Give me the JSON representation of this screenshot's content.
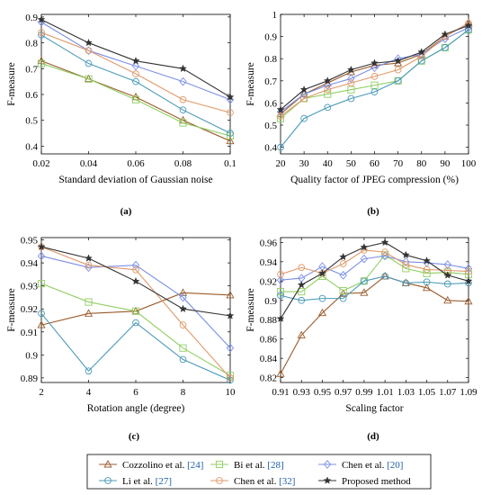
{
  "colors": {
    "cozzolino": "#9a5a2a",
    "bi": "#8fcf62",
    "chen20": "#7b8fe6",
    "li": "#4a9ab8",
    "chen32": "#e0996a",
    "proposed": "#333333",
    "reference": "#1f5fa6"
  },
  "legend": [
    {
      "key": "cozzolino",
      "name": "Cozzolino et al. ",
      "ref": "[24]",
      "marker": "triangle"
    },
    {
      "key": "bi",
      "name": "Bi et al. ",
      "ref": "[28]",
      "marker": "square"
    },
    {
      "key": "chen20",
      "name": "Chen et al. ",
      "ref": "[20]",
      "marker": "diamond"
    },
    {
      "key": "li",
      "name": "Li et al. ",
      "ref": "[27]",
      "marker": "circle"
    },
    {
      "key": "chen32",
      "name": "Chen et al. ",
      "ref": "[32]",
      "marker": "circle"
    },
    {
      "key": "proposed",
      "name": "Proposed method",
      "ref": "",
      "marker": "star"
    }
  ],
  "chart_data": [
    {
      "type": "line",
      "panel": "(a)",
      "xlabel": "Standard deviation of Gaussian noise",
      "ylabel": "F-measure",
      "x": [
        0.02,
        0.04,
        0.06,
        0.08,
        0.1
      ],
      "xticks": [
        "0.02",
        "0.04",
        "0.06",
        "0.08",
        "0.1"
      ],
      "xlim": [
        0.02,
        0.1
      ],
      "yticks": [
        0.4,
        0.5,
        0.6,
        0.7,
        0.8,
        0.9
      ],
      "ylim": [
        0.37,
        0.91
      ],
      "series": [
        {
          "key": "cozzolino",
          "values": [
            0.73,
            0.66,
            0.59,
            0.5,
            0.42
          ]
        },
        {
          "key": "bi",
          "values": [
            0.72,
            0.66,
            0.58,
            0.49,
            0.44
          ]
        },
        {
          "key": "chen20",
          "values": [
            0.88,
            0.77,
            0.71,
            0.65,
            0.58
          ]
        },
        {
          "key": "li",
          "values": [
            0.83,
            0.72,
            0.65,
            0.54,
            0.45
          ]
        },
        {
          "key": "chen32",
          "values": [
            0.84,
            0.77,
            0.68,
            0.58,
            0.53
          ]
        },
        {
          "key": "proposed",
          "values": [
            0.89,
            0.8,
            0.73,
            0.7,
            0.59
          ]
        }
      ]
    },
    {
      "type": "line",
      "panel": "(b)",
      "xlabel": "Quality factor of JPEG compression (%)",
      "ylabel": "F-measure",
      "x": [
        20,
        30,
        40,
        50,
        60,
        70,
        80,
        90,
        100
      ],
      "xticks": [
        "20",
        "30",
        "40",
        "50",
        "60",
        "70",
        "80",
        "90",
        "100"
      ],
      "xlim": [
        20,
        100
      ],
      "yticks": [
        0.4,
        0.5,
        0.6,
        0.7,
        0.8,
        0.9,
        1
      ],
      "ylim": [
        0.37,
        1.0
      ],
      "series": [
        {
          "key": "cozzolino",
          "values": [
            0.55,
            0.64,
            0.69,
            0.74,
            0.77,
            0.78,
            0.82,
            0.9,
            0.96
          ]
        },
        {
          "key": "bi",
          "values": [
            0.53,
            0.62,
            0.64,
            0.66,
            0.68,
            0.7,
            0.79,
            0.85,
            0.93
          ]
        },
        {
          "key": "chen20",
          "values": [
            0.56,
            0.64,
            0.68,
            0.71,
            0.76,
            0.8,
            0.82,
            0.89,
            0.94
          ]
        },
        {
          "key": "li",
          "values": [
            0.4,
            0.53,
            0.58,
            0.62,
            0.65,
            0.7,
            0.79,
            0.85,
            0.93
          ]
        },
        {
          "key": "chen32",
          "values": [
            0.54,
            0.62,
            0.66,
            0.69,
            0.72,
            0.75,
            0.81,
            0.9,
            0.96
          ]
        },
        {
          "key": "proposed",
          "values": [
            0.57,
            0.66,
            0.7,
            0.75,
            0.78,
            0.79,
            0.83,
            0.91,
            0.95
          ]
        }
      ]
    },
    {
      "type": "line",
      "panel": "(c)",
      "xlabel": "Rotation angle (degree)",
      "ylabel": "F-measure",
      "x": [
        2,
        4,
        6,
        8,
        10
      ],
      "xticks": [
        "2",
        "4",
        "6",
        "8",
        "10"
      ],
      "xlim": [
        2,
        10
      ],
      "yticks": [
        0.89,
        0.9,
        0.91,
        0.92,
        0.93,
        0.94,
        0.95
      ],
      "ylim": [
        0.888,
        0.951
      ],
      "series": [
        {
          "key": "cozzolino",
          "values": [
            0.913,
            0.918,
            0.919,
            0.927,
            0.926
          ]
        },
        {
          "key": "bi",
          "values": [
            0.931,
            0.923,
            0.919,
            0.903,
            0.891
          ]
        },
        {
          "key": "chen20",
          "values": [
            0.943,
            0.938,
            0.939,
            0.925,
            0.903
          ]
        },
        {
          "key": "li",
          "values": [
            0.918,
            0.893,
            0.914,
            0.898,
            0.889
          ]
        },
        {
          "key": "chen32",
          "values": [
            0.947,
            0.939,
            0.937,
            0.913,
            0.89
          ]
        },
        {
          "key": "proposed",
          "values": [
            0.947,
            0.942,
            0.932,
            0.92,
            0.917
          ]
        }
      ]
    },
    {
      "type": "line",
      "panel": "(d)",
      "xlabel": "Scaling factor",
      "ylabel": "F-measure",
      "x": [
        0.91,
        0.93,
        0.95,
        0.97,
        0.99,
        1.01,
        1.03,
        1.05,
        1.07,
        1.09
      ],
      "xticks": [
        "0.91",
        "0.93",
        "0.95",
        "0.97",
        "0.99",
        "1.01",
        "1.03",
        "1.05",
        "1.07",
        "1.09"
      ],
      "xlim": [
        0.91,
        1.09
      ],
      "yticks": [
        0.82,
        0.84,
        0.86,
        0.88,
        0.9,
        0.92,
        0.94,
        0.96
      ],
      "ylim": [
        0.815,
        0.965
      ],
      "series": [
        {
          "key": "cozzolino",
          "values": [
            0.824,
            0.864,
            0.887,
            0.907,
            0.908,
            0.925,
            0.918,
            0.913,
            0.9,
            0.899
          ]
        },
        {
          "key": "bi",
          "values": [
            0.909,
            0.909,
            0.925,
            0.91,
            0.92,
            0.947,
            0.933,
            0.928,
            0.929,
            0.927
          ]
        },
        {
          "key": "chen20",
          "values": [
            0.921,
            0.923,
            0.935,
            0.926,
            0.943,
            0.946,
            0.94,
            0.939,
            0.937,
            0.933
          ]
        },
        {
          "key": "li",
          "values": [
            0.905,
            0.9,
            0.902,
            0.902,
            0.92,
            0.925,
            0.918,
            0.919,
            0.917,
            0.918
          ]
        },
        {
          "key": "chen32",
          "values": [
            0.927,
            0.934,
            0.928,
            0.938,
            0.952,
            0.95,
            0.937,
            0.932,
            0.931,
            0.93
          ]
        },
        {
          "key": "proposed",
          "values": [
            0.881,
            0.916,
            0.928,
            0.945,
            0.955,
            0.96,
            0.947,
            0.941,
            0.926,
            0.92
          ]
        }
      ]
    }
  ]
}
